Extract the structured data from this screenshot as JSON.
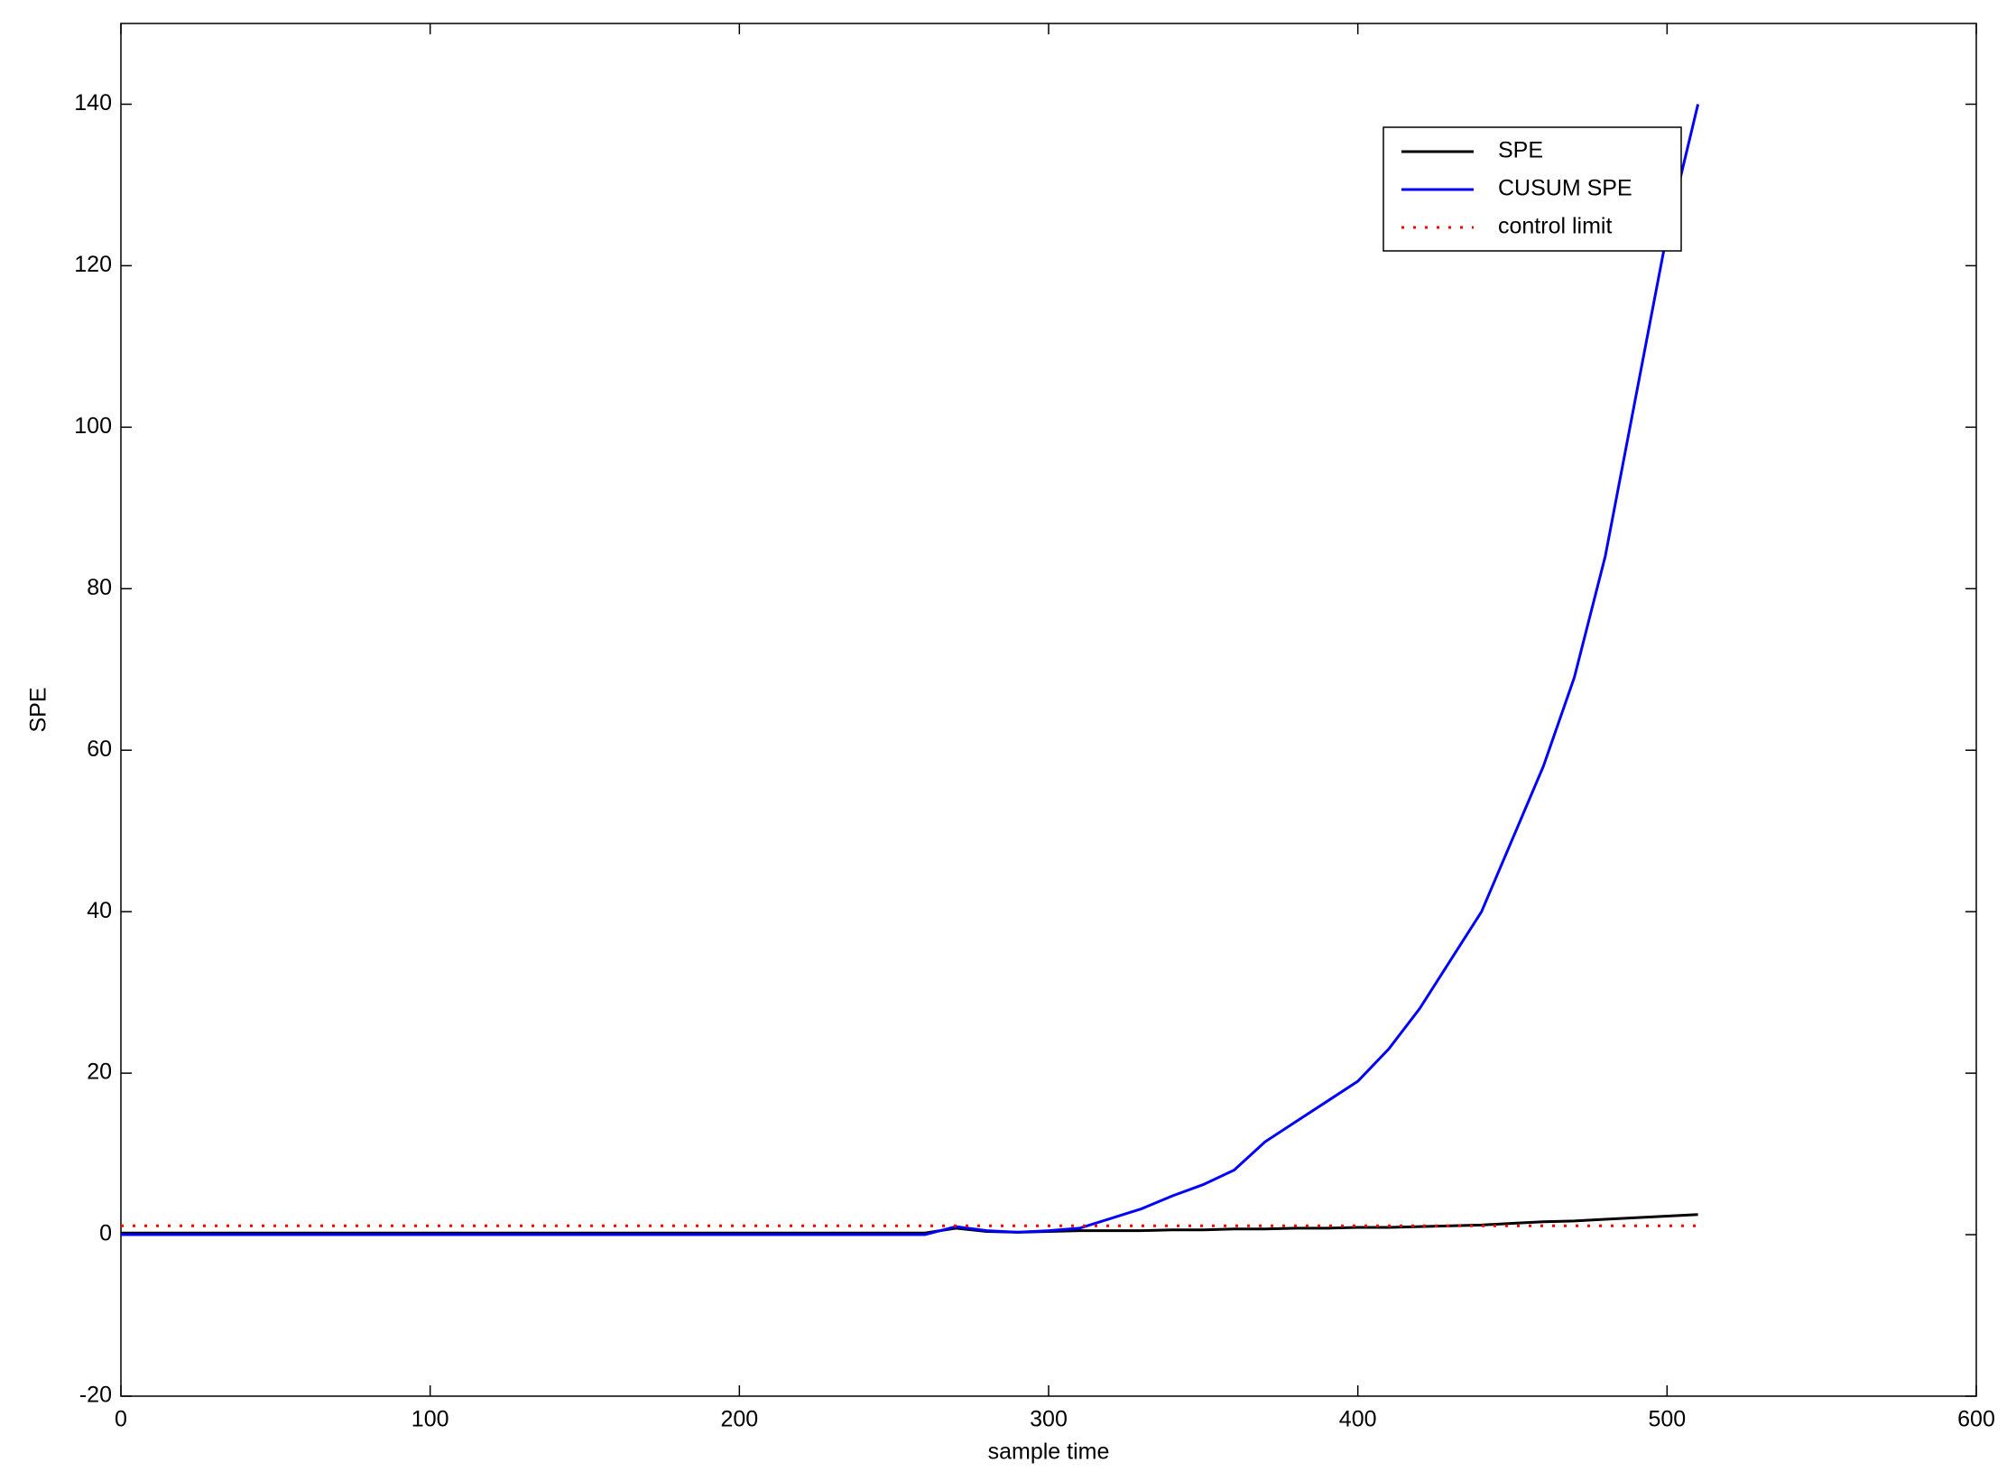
{
  "chart_data": {
    "type": "line",
    "x_label": "sample time",
    "y_label": "SPE",
    "x": [
      0,
      10,
      20,
      30,
      40,
      50,
      60,
      70,
      80,
      90,
      100,
      110,
      120,
      130,
      140,
      150,
      160,
      170,
      180,
      190,
      200,
      210,
      220,
      230,
      240,
      250,
      260,
      270,
      280,
      290,
      300,
      310,
      320,
      330,
      340,
      350,
      360,
      370,
      380,
      390,
      400,
      410,
      420,
      430,
      440,
      450,
      460,
      470,
      480,
      490,
      500,
      510
    ],
    "series": [
      {
        "name": "SPE",
        "color": "#000000",
        "style": "solid",
        "values": [
          0.2,
          0.2,
          0.2,
          0.2,
          0.2,
          0.2,
          0.2,
          0.2,
          0.2,
          0.2,
          0.2,
          0.2,
          0.2,
          0.2,
          0.2,
          0.2,
          0.2,
          0.2,
          0.2,
          0.2,
          0.2,
          0.2,
          0.2,
          0.2,
          0.2,
          0.2,
          0.2,
          0.8,
          0.4,
          0.3,
          0.4,
          0.5,
          0.5,
          0.5,
          0.6,
          0.6,
          0.7,
          0.7,
          0.8,
          0.8,
          0.9,
          0.9,
          1.0,
          1.1,
          1.2,
          1.4,
          1.6,
          1.7,
          1.9,
          2.1,
          2.3,
          2.5
        ]
      },
      {
        "name": "CUSUM SPE",
        "color": "#0000ff",
        "style": "solid",
        "values": [
          0,
          0,
          0,
          0,
          0,
          0,
          0,
          0,
          0,
          0,
          0,
          0,
          0,
          0,
          0,
          0,
          0,
          0,
          0,
          0,
          0,
          0,
          0,
          0,
          0,
          0,
          0,
          1.0,
          0.5,
          0.3,
          0.5,
          0.8,
          2.0,
          3.2,
          4.8,
          6.2,
          8.0,
          11.5,
          14.0,
          16.5,
          19,
          23,
          28,
          34,
          40,
          49,
          58,
          69,
          84,
          104,
          124,
          140
        ]
      },
      {
        "name": "control limit",
        "color": "#ff0000",
        "style": "dotted",
        "values": [
          1.1,
          1.1,
          1.1,
          1.1,
          1.1,
          1.1,
          1.1,
          1.1,
          1.1,
          1.1,
          1.1,
          1.1,
          1.1,
          1.1,
          1.1,
          1.1,
          1.1,
          1.1,
          1.1,
          1.1,
          1.1,
          1.1,
          1.1,
          1.1,
          1.1,
          1.1,
          1.1,
          1.1,
          1.1,
          1.1,
          1.1,
          1.1,
          1.1,
          1.1,
          1.1,
          1.1,
          1.1,
          1.1,
          1.1,
          1.1,
          1.1,
          1.1,
          1.1,
          1.1,
          1.1,
          1.1,
          1.1,
          1.1,
          1.1,
          1.1,
          1.1,
          1.1
        ]
      }
    ],
    "xlim": [
      0,
      600
    ],
    "xticks": [
      0,
      100,
      200,
      300,
      400,
      500,
      600
    ],
    "ylim": [
      -20,
      150
    ],
    "yticks": [
      -20,
      0,
      20,
      40,
      60,
      80,
      100,
      120,
      140
    ],
    "legend": "top-right",
    "grid": false
  }
}
